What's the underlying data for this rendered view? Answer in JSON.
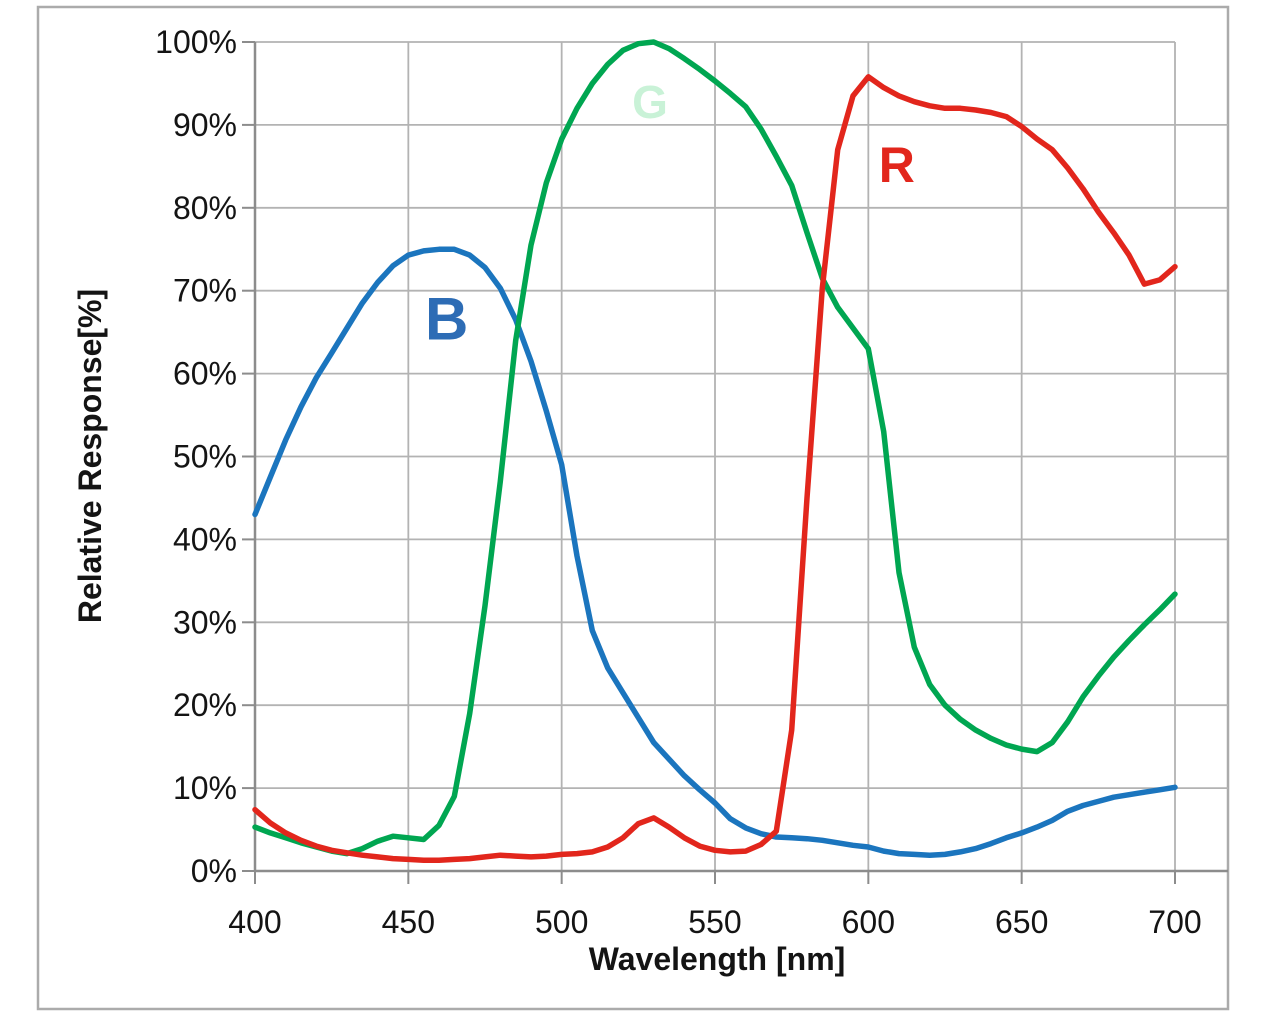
{
  "figure": {
    "background": "#ffffff",
    "border_color": "#ababab",
    "gridline_color": "#b3b3b3",
    "axis_color": "#8c8c8c",
    "text_color": "#141414"
  },
  "chart_data": {
    "type": "line",
    "title": "",
    "xlabel": "Wavelength [nm]",
    "ylabel": "Relative Response[%]",
    "xlim": [
      400,
      700
    ],
    "ylim": [
      0,
      100
    ],
    "grid": true,
    "legend_position": "labels-on-curves",
    "x_ticks": [
      400,
      450,
      500,
      550,
      600,
      650,
      700
    ],
    "y_ticks": [
      0,
      10,
      20,
      30,
      40,
      50,
      60,
      70,
      80,
      90,
      100
    ],
    "y_tick_suffix": "%",
    "wavelengths_nm": [
      400,
      405,
      410,
      415,
      420,
      425,
      430,
      435,
      440,
      445,
      450,
      455,
      460,
      465,
      470,
      475,
      480,
      485,
      490,
      495,
      500,
      505,
      510,
      515,
      520,
      525,
      530,
      535,
      540,
      545,
      550,
      555,
      560,
      565,
      570,
      575,
      580,
      585,
      590,
      595,
      600,
      605,
      610,
      615,
      620,
      625,
      630,
      635,
      640,
      645,
      650,
      655,
      660,
      665,
      670,
      675,
      680,
      685,
      690,
      695,
      700
    ],
    "series": [
      {
        "name": "blue-channel",
        "label": "B",
        "color": "#1B75BE",
        "label_color": "#2D6CB5",
        "label_at": {
          "nm": 462.5,
          "pct": 66.2
        },
        "values": [
          43,
          47.5,
          52,
          56,
          59.5,
          62.5,
          65.5,
          68.5,
          71,
          73,
          74.3,
          74.8,
          75,
          75,
          74.3,
          72.8,
          70.3,
          66.5,
          61.5,
          55.5,
          49,
          38,
          29,
          24.5,
          21.5,
          18.5,
          15.5,
          13.5,
          11.5,
          9.8,
          8.2,
          6.3,
          5.2,
          4.5,
          4.1,
          4.0,
          3.9,
          3.7,
          3.4,
          3.1,
          2.9,
          2.4,
          2.1,
          2.0,
          1.9,
          2.0,
          2.3,
          2.7,
          3.3,
          4.0,
          4.6,
          5.3,
          6.1,
          7.2,
          7.9,
          8.4,
          8.9,
          9.2,
          9.5,
          9.8,
          10.1
        ]
      },
      {
        "name": "green-channel",
        "label": "G",
        "color": "#00A651",
        "label_color": "#C9F2D7",
        "label_at": {
          "nm": 528.8,
          "pct": 92.5
        },
        "values": [
          5.3,
          4.6,
          4.0,
          3.4,
          2.9,
          2.4,
          2.1,
          2.7,
          3.6,
          4.2,
          4.0,
          3.8,
          5.5,
          9,
          19,
          32,
          47,
          64,
          75.5,
          83,
          88.3,
          92,
          95,
          97.3,
          99,
          99.8,
          100,
          99.2,
          98,
          96.7,
          95.3,
          93.8,
          92.2,
          89.5,
          86.2,
          82.7,
          77,
          71.5,
          68,
          65.5,
          63,
          53,
          36,
          27,
          22.5,
          20,
          18.3,
          17,
          16,
          15.2,
          14.7,
          14.4,
          15.5,
          18,
          21,
          23.5,
          25.8,
          27.8,
          29.7,
          31.5,
          33.4
        ]
      },
      {
        "name": "red-channel",
        "label": "R",
        "color": "#E2261C",
        "label_color": "#E2261C",
        "label_at": {
          "nm": 609.3,
          "pct": 84.9
        },
        "values": [
          7.4,
          5.8,
          4.6,
          3.7,
          3.0,
          2.5,
          2.2,
          1.9,
          1.7,
          1.5,
          1.4,
          1.3,
          1.3,
          1.4,
          1.5,
          1.7,
          1.9,
          1.8,
          1.7,
          1.8,
          2.0,
          2.1,
          2.3,
          2.9,
          4.0,
          5.7,
          6.4,
          5.3,
          4.0,
          3.0,
          2.5,
          2.3,
          2.4,
          3.2,
          4.8,
          17,
          45,
          70.3,
          87,
          93.5,
          95.8,
          94.5,
          93.5,
          92.8,
          92.3,
          92,
          92,
          91.8,
          91.5,
          91,
          89.8,
          88.3,
          87,
          84.8,
          82.3,
          79.5,
          77,
          74.3,
          70.8,
          71.3,
          72.9
        ]
      }
    ]
  }
}
